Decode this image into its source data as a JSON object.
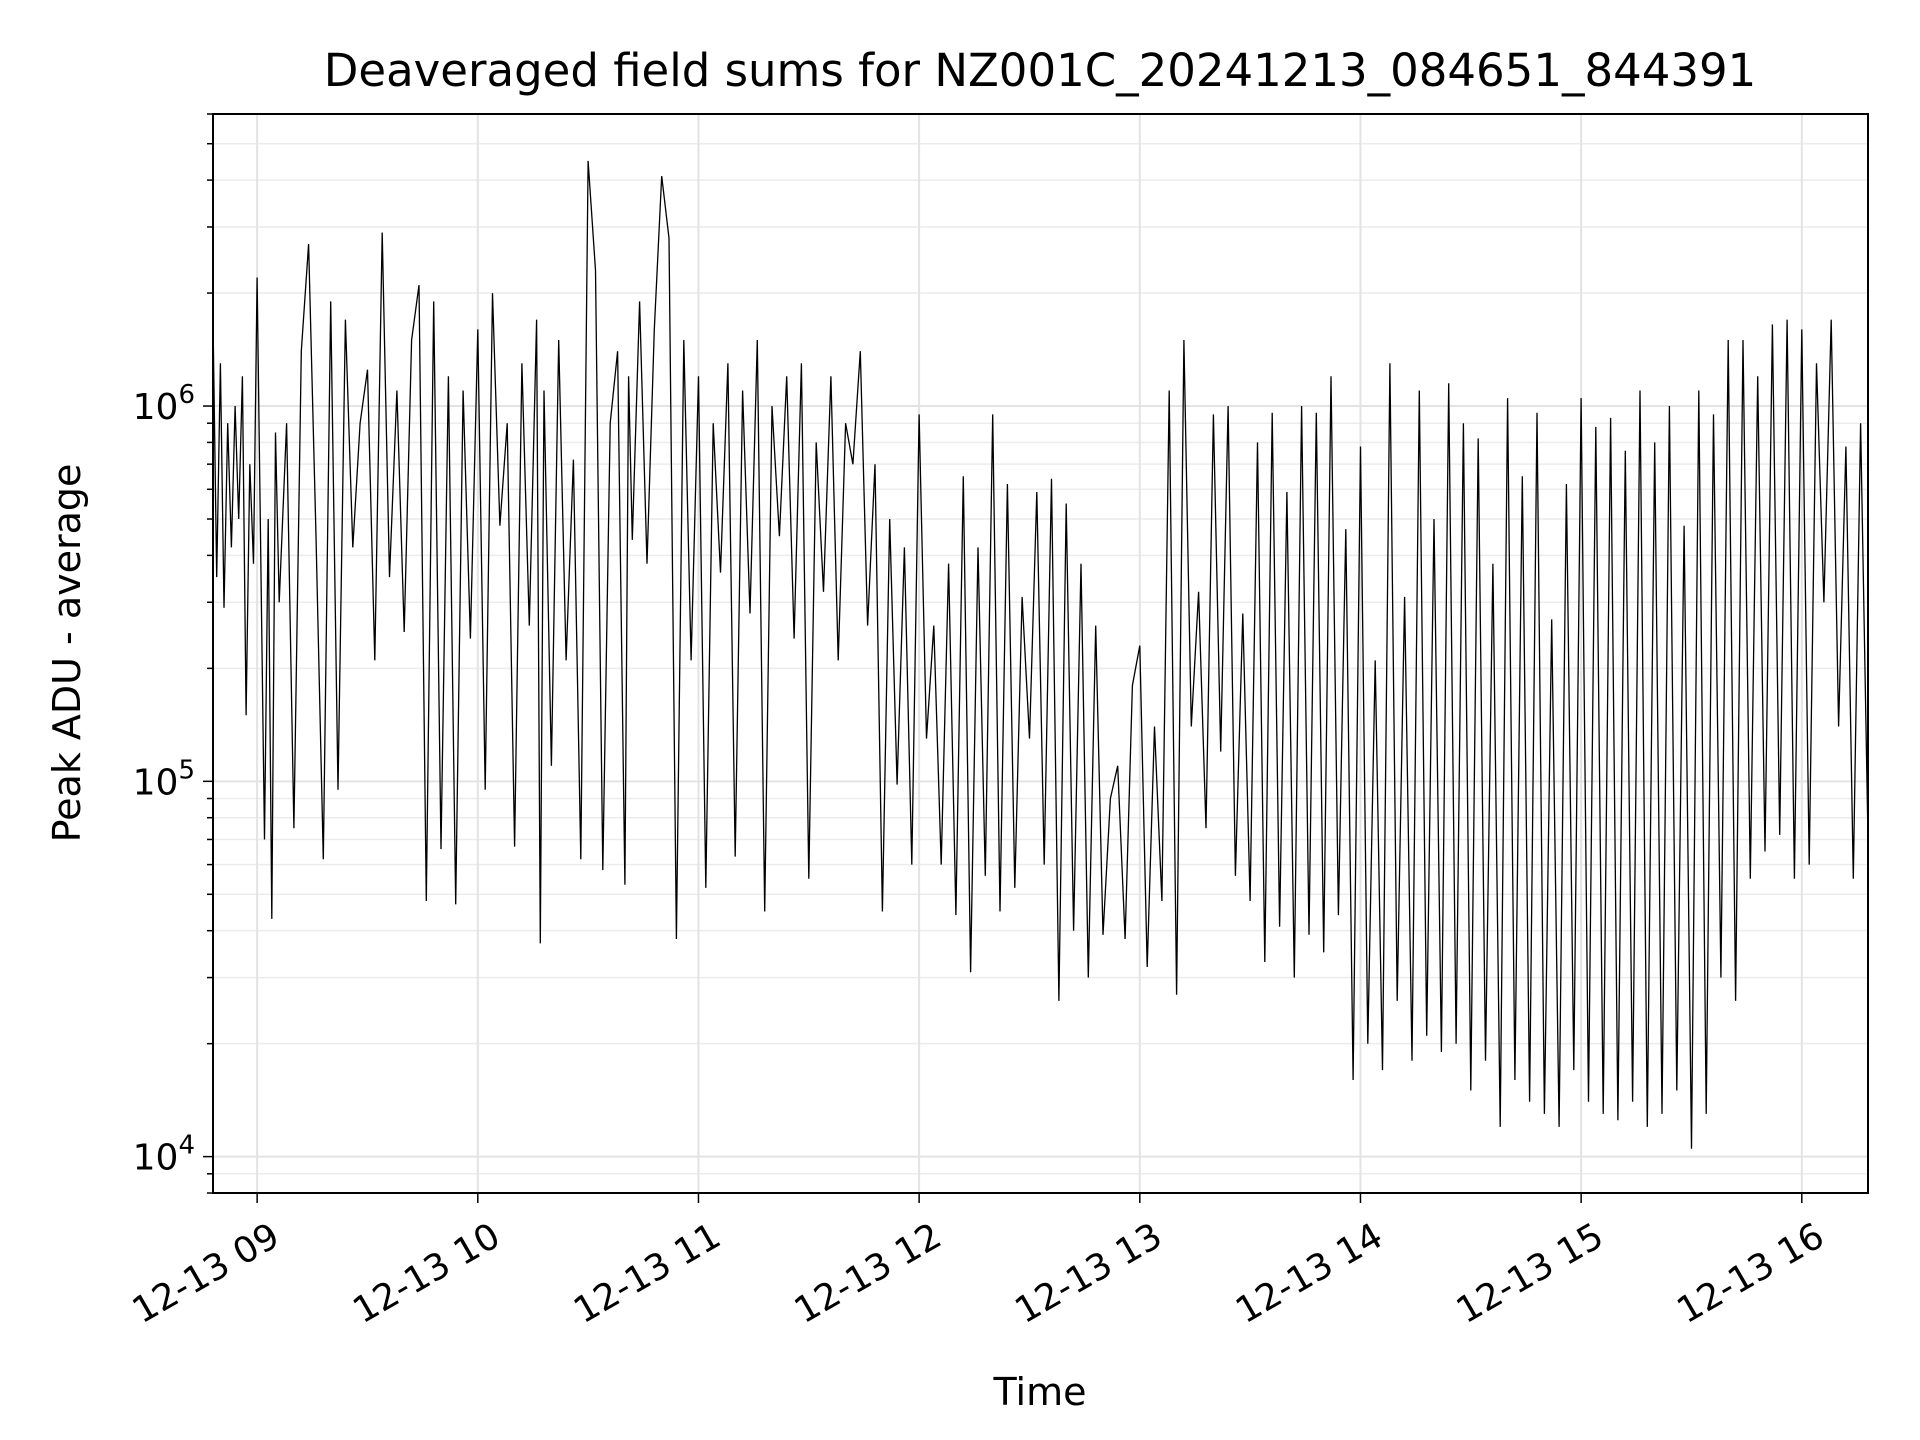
{
  "chart_data": {
    "type": "line",
    "title": "Deaveraged field sums for NZ001C_20241213_084651_844391",
    "xlabel": "Time",
    "ylabel": "Peak ADU - average",
    "y_scale": "log",
    "ylim": [
      8000,
      6000000
    ],
    "xlim": [
      "2024-12-13 08:48",
      "2024-12-13 16:18"
    ],
    "grid": true,
    "line_color": "#000000",
    "x_ticks": [
      {
        "label": "12-13 09",
        "t": "2024-12-13 09:00"
      },
      {
        "label": "12-13 10",
        "t": "2024-12-13 10:00"
      },
      {
        "label": "12-13 11",
        "t": "2024-12-13 11:00"
      },
      {
        "label": "12-13 12",
        "t": "2024-12-13 12:00"
      },
      {
        "label": "12-13 13",
        "t": "2024-12-13 13:00"
      },
      {
        "label": "12-13 14",
        "t": "2024-12-13 14:00"
      },
      {
        "label": "12-13 15",
        "t": "2024-12-13 15:00"
      },
      {
        "label": "12-13 16",
        "t": "2024-12-13 16:00"
      }
    ],
    "y_ticks": [
      {
        "base": "10",
        "exp": "4",
        "value": 10000
      },
      {
        "base": "10",
        "exp": "5",
        "value": 100000
      },
      {
        "base": "10",
        "exp": "6",
        "value": 1000000
      }
    ],
    "series": [
      {
        "x": [
          "2024-12-13 08:48",
          "2024-12-13 08:49",
          "2024-12-13 08:50",
          "2024-12-13 08:51",
          "2024-12-13 08:52",
          "2024-12-13 08:53",
          "2024-12-13 08:54",
          "2024-12-13 08:55",
          "2024-12-13 08:56",
          "2024-12-13 08:57",
          "2024-12-13 08:58",
          "2024-12-13 08:59",
          "2024-12-13 09:00",
          "2024-12-13 09:02",
          "2024-12-13 09:03",
          "2024-12-13 09:04",
          "2024-12-13 09:05",
          "2024-12-13 09:06",
          "2024-12-13 09:08",
          "2024-12-13 09:10",
          "2024-12-13 09:12",
          "2024-12-13 09:14",
          "2024-12-13 09:16",
          "2024-12-13 09:18",
          "2024-12-13 09:20",
          "2024-12-13 09:22",
          "2024-12-13 09:24",
          "2024-12-13 09:26",
          "2024-12-13 09:28",
          "2024-12-13 09:30",
          "2024-12-13 09:32",
          "2024-12-13 09:34",
          "2024-12-13 09:36",
          "2024-12-13 09:38",
          "2024-12-13 09:40",
          "2024-12-13 09:42",
          "2024-12-13 09:44",
          "2024-12-13 09:46",
          "2024-12-13 09:48",
          "2024-12-13 09:50",
          "2024-12-13 09:52",
          "2024-12-13 09:54",
          "2024-12-13 09:56",
          "2024-12-13 09:58",
          "2024-12-13 10:00",
          "2024-12-13 10:02",
          "2024-12-13 10:04",
          "2024-12-13 10:06",
          "2024-12-13 10:08",
          "2024-12-13 10:10",
          "2024-12-13 10:12",
          "2024-12-13 10:14",
          "2024-12-13 10:16",
          "2024-12-13 10:17",
          "2024-12-13 10:18",
          "2024-12-13 10:20",
          "2024-12-13 10:22",
          "2024-12-13 10:24",
          "2024-12-13 10:26",
          "2024-12-13 10:28",
          "2024-12-13 10:30",
          "2024-12-13 10:32",
          "2024-12-13 10:34",
          "2024-12-13 10:36",
          "2024-12-13 10:38",
          "2024-12-13 10:40",
          "2024-12-13 10:41",
          "2024-12-13 10:42",
          "2024-12-13 10:44",
          "2024-12-13 10:46",
          "2024-12-13 10:48",
          "2024-12-13 10:50",
          "2024-12-13 10:52",
          "2024-12-13 10:54",
          "2024-12-13 10:56",
          "2024-12-13 10:58",
          "2024-12-13 11:00",
          "2024-12-13 11:02",
          "2024-12-13 11:04",
          "2024-12-13 11:06",
          "2024-12-13 11:08",
          "2024-12-13 11:10",
          "2024-12-13 11:12",
          "2024-12-13 11:14",
          "2024-12-13 11:16",
          "2024-12-13 11:18",
          "2024-12-13 11:20",
          "2024-12-13 11:22",
          "2024-12-13 11:24",
          "2024-12-13 11:26",
          "2024-12-13 11:28",
          "2024-12-13 11:30",
          "2024-12-13 11:32",
          "2024-12-13 11:34",
          "2024-12-13 11:36",
          "2024-12-13 11:38",
          "2024-12-13 11:40",
          "2024-12-13 11:42",
          "2024-12-13 11:44",
          "2024-12-13 11:46",
          "2024-12-13 11:48",
          "2024-12-13 11:50",
          "2024-12-13 11:52",
          "2024-12-13 11:54",
          "2024-12-13 11:56",
          "2024-12-13 11:58",
          "2024-12-13 12:00",
          "2024-12-13 12:02",
          "2024-12-13 12:04",
          "2024-12-13 12:06",
          "2024-12-13 12:08",
          "2024-12-13 12:10",
          "2024-12-13 12:12",
          "2024-12-13 12:14",
          "2024-12-13 12:16",
          "2024-12-13 12:18",
          "2024-12-13 12:20",
          "2024-12-13 12:22",
          "2024-12-13 12:24",
          "2024-12-13 12:26",
          "2024-12-13 12:28",
          "2024-12-13 12:30",
          "2024-12-13 12:32",
          "2024-12-13 12:34",
          "2024-12-13 12:36",
          "2024-12-13 12:38",
          "2024-12-13 12:40",
          "2024-12-13 12:42",
          "2024-12-13 12:44",
          "2024-12-13 12:46",
          "2024-12-13 12:48",
          "2024-12-13 12:50",
          "2024-12-13 12:52",
          "2024-12-13 12:54",
          "2024-12-13 12:56",
          "2024-12-13 12:58",
          "2024-12-13 13:00",
          "2024-12-13 13:02",
          "2024-12-13 13:04",
          "2024-12-13 13:06",
          "2024-12-13 13:08",
          "2024-12-13 13:10",
          "2024-12-13 13:12",
          "2024-12-13 13:14",
          "2024-12-13 13:16",
          "2024-12-13 13:18",
          "2024-12-13 13:20",
          "2024-12-13 13:22",
          "2024-12-13 13:24",
          "2024-12-13 13:26",
          "2024-12-13 13:28",
          "2024-12-13 13:30",
          "2024-12-13 13:32",
          "2024-12-13 13:34",
          "2024-12-13 13:36",
          "2024-12-13 13:38",
          "2024-12-13 13:40",
          "2024-12-13 13:42",
          "2024-12-13 13:44",
          "2024-12-13 13:46",
          "2024-12-13 13:48",
          "2024-12-13 13:50",
          "2024-12-13 13:52",
          "2024-12-13 13:54",
          "2024-12-13 13:56",
          "2024-12-13 13:58",
          "2024-12-13 14:00",
          "2024-12-13 14:02",
          "2024-12-13 14:04",
          "2024-12-13 14:06",
          "2024-12-13 14:08",
          "2024-12-13 14:10",
          "2024-12-13 14:12",
          "2024-12-13 14:14",
          "2024-12-13 14:16",
          "2024-12-13 14:18",
          "2024-12-13 14:20",
          "2024-12-13 14:22",
          "2024-12-13 14:24",
          "2024-12-13 14:26",
          "2024-12-13 14:28",
          "2024-12-13 14:30",
          "2024-12-13 14:32",
          "2024-12-13 14:34",
          "2024-12-13 14:36",
          "2024-12-13 14:38",
          "2024-12-13 14:40",
          "2024-12-13 14:42",
          "2024-12-13 14:44",
          "2024-12-13 14:46",
          "2024-12-13 14:48",
          "2024-12-13 14:50",
          "2024-12-13 14:52",
          "2024-12-13 14:54",
          "2024-12-13 14:56",
          "2024-12-13 14:58",
          "2024-12-13 15:00",
          "2024-12-13 15:02",
          "2024-12-13 15:04",
          "2024-12-13 15:06",
          "2024-12-13 15:08",
          "2024-12-13 15:10",
          "2024-12-13 15:12",
          "2024-12-13 15:14",
          "2024-12-13 15:16",
          "2024-12-13 15:18",
          "2024-12-13 15:20",
          "2024-12-13 15:22",
          "2024-12-13 15:24",
          "2024-12-13 15:26",
          "2024-12-13 15:28",
          "2024-12-13 15:30",
          "2024-12-13 15:32",
          "2024-12-13 15:34",
          "2024-12-13 15:36",
          "2024-12-13 15:38",
          "2024-12-13 15:40",
          "2024-12-13 15:42",
          "2024-12-13 15:44",
          "2024-12-13 15:46",
          "2024-12-13 15:48",
          "2024-12-13 15:50",
          "2024-12-13 15:52",
          "2024-12-13 15:54",
          "2024-12-13 15:56",
          "2024-12-13 15:58",
          "2024-12-13 16:00",
          "2024-12-13 16:02",
          "2024-12-13 16:04",
          "2024-12-13 16:06",
          "2024-12-13 16:08",
          "2024-12-13 16:10",
          "2024-12-13 16:12",
          "2024-12-13 16:14",
          "2024-12-13 16:16",
          "2024-12-13 16:18"
        ],
        "y": [
          1700000,
          350000,
          1300000,
          290000,
          900000,
          420000,
          1000000,
          500000,
          1200000,
          150000,
          700000,
          380000,
          2200000,
          70000,
          500000,
          43000,
          850000,
          300000,
          900000,
          75000,
          1400000,
          2700000,
          450000,
          62000,
          1900000,
          95000,
          1700000,
          420000,
          900000,
          1250000,
          210000,
          2900000,
          350000,
          1100000,
          250000,
          1500000,
          2100000,
          48000,
          1900000,
          66000,
          1200000,
          47000,
          1100000,
          240000,
          1600000,
          95000,
          2000000,
          480000,
          900000,
          67000,
          1300000,
          260000,
          1700000,
          37000,
          1100000,
          110000,
          1500000,
          210000,
          720000,
          62000,
          4500000,
          2300000,
          58000,
          900000,
          1400000,
          53000,
          1200000,
          440000,
          1900000,
          380000,
          1600000,
          4100000,
          2800000,
          38000,
          1500000,
          210000,
          1200000,
          52000,
          900000,
          360000,
          1300000,
          63000,
          1100000,
          280000,
          1500000,
          45000,
          1000000,
          450000,
          1200000,
          240000,
          1300000,
          55000,
          800000,
          320000,
          1200000,
          210000,
          900000,
          700000,
          1400000,
          260000,
          700000,
          45000,
          500000,
          98000,
          420000,
          60000,
          950000,
          130000,
          260000,
          60000,
          380000,
          44000,
          650000,
          31000,
          420000,
          56000,
          950000,
          45000,
          620000,
          52000,
          310000,
          130000,
          590000,
          60000,
          640000,
          26000,
          550000,
          40000,
          380000,
          30000,
          260000,
          39000,
          90000,
          110000,
          38000,
          180000,
          230000,
          32000,
          140000,
          48000,
          1100000,
          27000,
          1500000,
          140000,
          320000,
          75000,
          950000,
          120000,
          1000000,
          56000,
          280000,
          48000,
          800000,
          33000,
          960000,
          41000,
          590000,
          30000,
          1000000,
          39000,
          960000,
          35000,
          1200000,
          44000,
          470000,
          16000,
          780000,
          20000,
          210000,
          17000,
          1300000,
          26000,
          310000,
          18000,
          1100000,
          21000,
          500000,
          19000,
          1150000,
          20000,
          900000,
          15000,
          820000,
          18000,
          380000,
          12000,
          1050000,
          16000,
          650000,
          14000,
          960000,
          13000,
          270000,
          12000,
          620000,
          17000,
          1050000,
          14000,
          880000,
          13000,
          930000,
          12500,
          760000,
          14000,
          1100000,
          12000,
          800000,
          13000,
          1000000,
          15000,
          480000,
          10500,
          1100000,
          13000,
          950000,
          30000,
          1500000,
          26000,
          1500000,
          55000,
          1200000,
          65000,
          1650000,
          72000,
          1700000,
          55000,
          1600000,
          60000,
          1300000,
          300000,
          1700000,
          140000,
          780000,
          55000,
          900000,
          70000
        ]
      }
    ]
  }
}
